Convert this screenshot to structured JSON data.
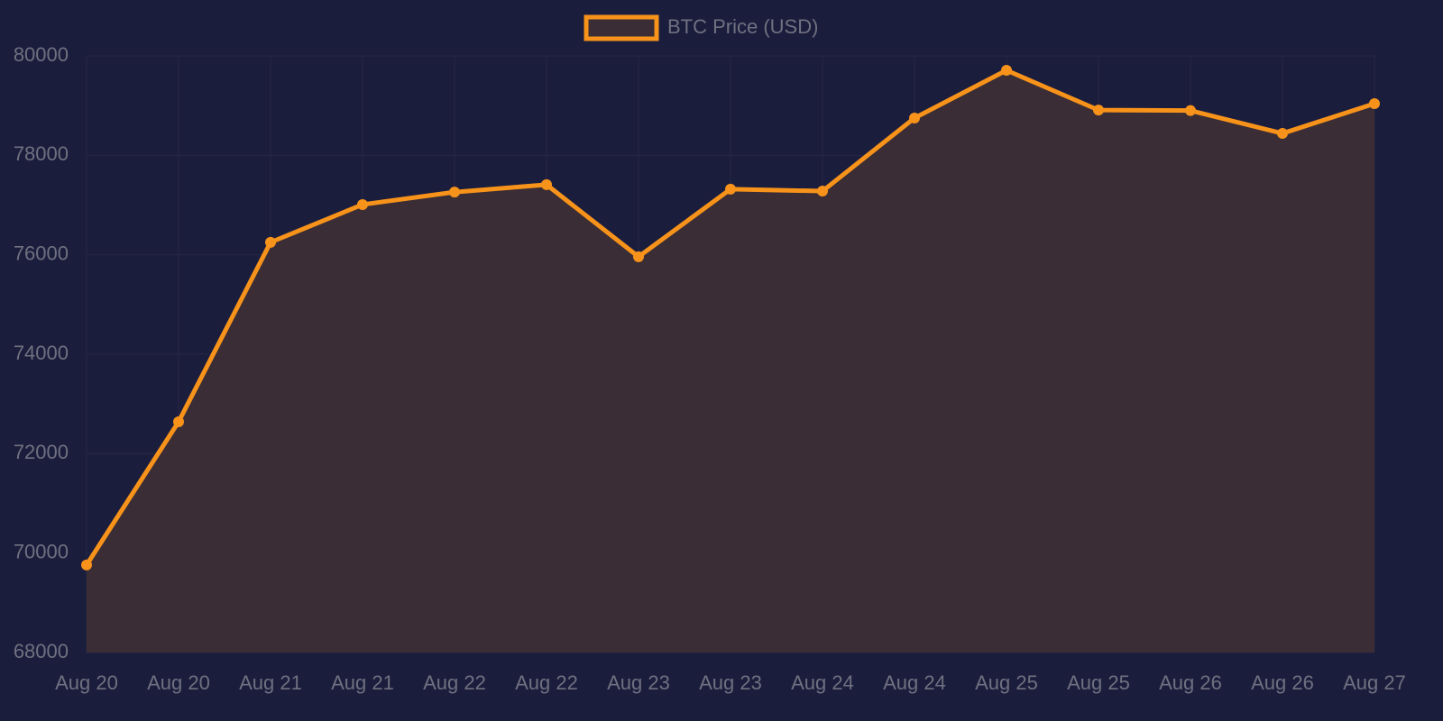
{
  "chart_data": {
    "type": "line",
    "categories": [
      "Aug 20",
      "Aug 20",
      "Aug 21",
      "Aug 21",
      "Aug 22",
      "Aug 22",
      "Aug 23",
      "Aug 23",
      "Aug 24",
      "Aug 24",
      "Aug 25",
      "Aug 25",
      "Aug 26",
      "Aug 26",
      "Aug 27"
    ],
    "series": [
      {
        "name": "BTC Price (USD)",
        "color": "#f7931a",
        "fill": "#3a2d35",
        "values": [
          69760,
          72640,
          76250,
          77010,
          77260,
          77410,
          75960,
          77320,
          77280,
          78750,
          79710,
          78910,
          78900,
          78440,
          79040
        ]
      }
    ],
    "ylim": [
      68000,
      80000
    ],
    "yticks": [
      68000,
      70000,
      72000,
      74000,
      76000,
      78000,
      80000
    ],
    "grid": true,
    "legend": "top"
  }
}
